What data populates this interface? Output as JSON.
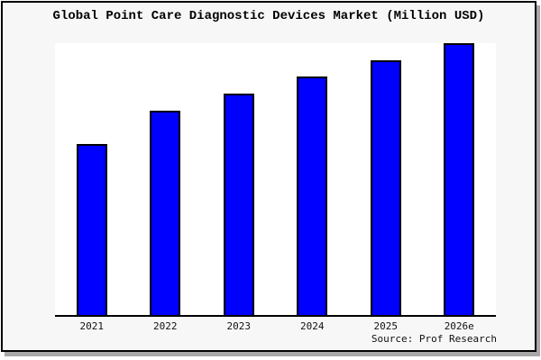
{
  "title": "Global Point Care Diagnostic Devices Market (Million USD)",
  "source_label": "Source: Prof Research",
  "colors": {
    "bar_fill": "#0000ff",
    "bar_border": "#000000",
    "plot_bg": "#ffffff",
    "canvas_bg": "#f7f7f7",
    "frame_border": "#000000",
    "axis": "#000000",
    "shadow": "#a8a8a8"
  },
  "chart_data": {
    "type": "bar",
    "title": "Global Point Care Diagnostic Devices Market (Million USD)",
    "unit": "Million USD",
    "categories": [
      "2021",
      "2022",
      "2023",
      "2024",
      "2025",
      "2026e"
    ],
    "values_relative_pct": [
      62.9,
      75.2,
      81.5,
      87.7,
      93.7,
      100
    ],
    "ylim": [
      0,
      100
    ],
    "xlabel": "",
    "ylabel": "",
    "value_axis_visible": false,
    "grid": false,
    "legend": "none",
    "annotations": [
      "Source: Prof Research"
    ]
  }
}
